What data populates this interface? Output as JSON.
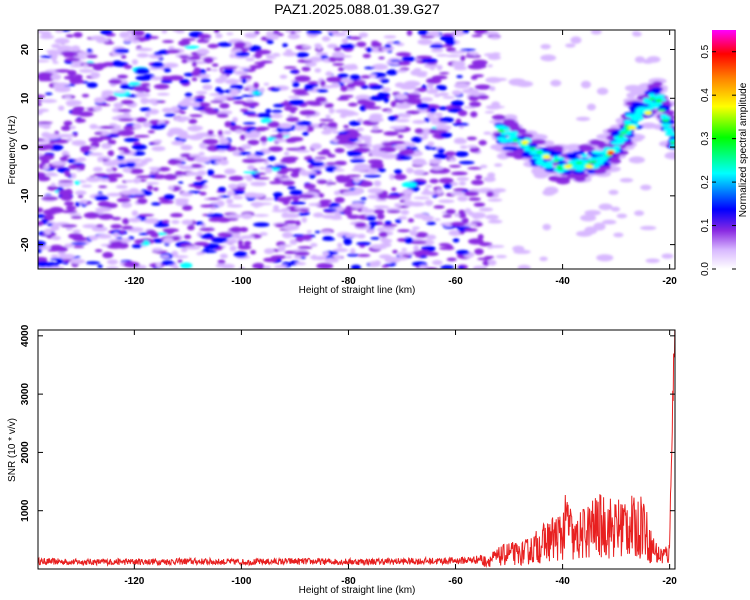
{
  "title": "PAZ1.2025.088.01.39.G27",
  "chart_data": [
    {
      "type": "heatmap",
      "xlabel": "Height of straight line (km)",
      "ylabel": "Frequency (Hz)",
      "xlim": [
        -138,
        -19
      ],
      "ylim": [
        -25,
        24
      ],
      "xticks": [
        -120,
        -100,
        -80,
        -60,
        -40,
        -20
      ],
      "yticks": [
        -20,
        -10,
        0,
        10,
        20
      ],
      "colorbar": {
        "label": "Normalized spectral amplitude",
        "range": [
          0.0,
          0.55
        ],
        "ticks": [
          "0.0",
          "0.1",
          "0.2",
          "0.3",
          "0.4",
          "0.5"
        ],
        "colors": [
          "#ffffff",
          "#d8b8ff",
          "#8a2be2",
          "#0000ff",
          "#00ffff",
          "#00ff00",
          "#ffff00",
          "#ff8000",
          "#ff0000",
          "#ff00ff"
        ]
      },
      "noise_region": {
        "x": [
          -138,
          -53
        ],
        "y": [
          -25,
          24
        ],
        "typical_amplitude": 0.1
      },
      "signal_ridge": [
        {
          "x": -52,
          "y": 3
        },
        {
          "x": -48,
          "y": 1
        },
        {
          "x": -44,
          "y": -2
        },
        {
          "x": -40,
          "y": -4
        },
        {
          "x": -35,
          "y": -3
        },
        {
          "x": -31,
          "y": -1
        },
        {
          "x": -28,
          "y": 4
        },
        {
          "x": -25,
          "y": 8
        },
        {
          "x": -22,
          "y": 10
        },
        {
          "x": -19,
          "y": 0
        }
      ],
      "peak_amplitude": 0.45
    },
    {
      "type": "line",
      "xlabel": "Height of straight line (km)",
      "ylabel": "SNR (10 * v/v)",
      "xlim": [
        -138,
        -19
      ],
      "ylim": [
        0,
        4100
      ],
      "xticks": [
        -120,
        -100,
        -80,
        -60,
        -40,
        -20
      ],
      "yticks": [
        1000,
        2000,
        3000,
        4000
      ],
      "color": "#e82020",
      "series": [
        {
          "x": [
            -138,
            -130,
            -120,
            -110,
            -100,
            -90,
            -80,
            -70,
            -60,
            -56,
            -54,
            -52,
            -50,
            -48,
            -46,
            -44,
            -42,
            -40,
            -39,
            -38,
            -36,
            -34,
            -32,
            -30,
            -28,
            -26,
            -25,
            -24,
            -22,
            -20,
            -19.8,
            -19.5,
            -19.2,
            -19
          ],
          "values": [
            130,
            120,
            125,
            130,
            120,
            130,
            125,
            130,
            140,
            160,
            220,
            320,
            420,
            380,
            500,
            650,
            800,
            900,
            1300,
            700,
            950,
            1100,
            1150,
            1050,
            1200,
            1000,
            1350,
            700,
            350,
            400,
            1500,
            2600,
            3600,
            4000
          ]
        }
      ]
    }
  ]
}
